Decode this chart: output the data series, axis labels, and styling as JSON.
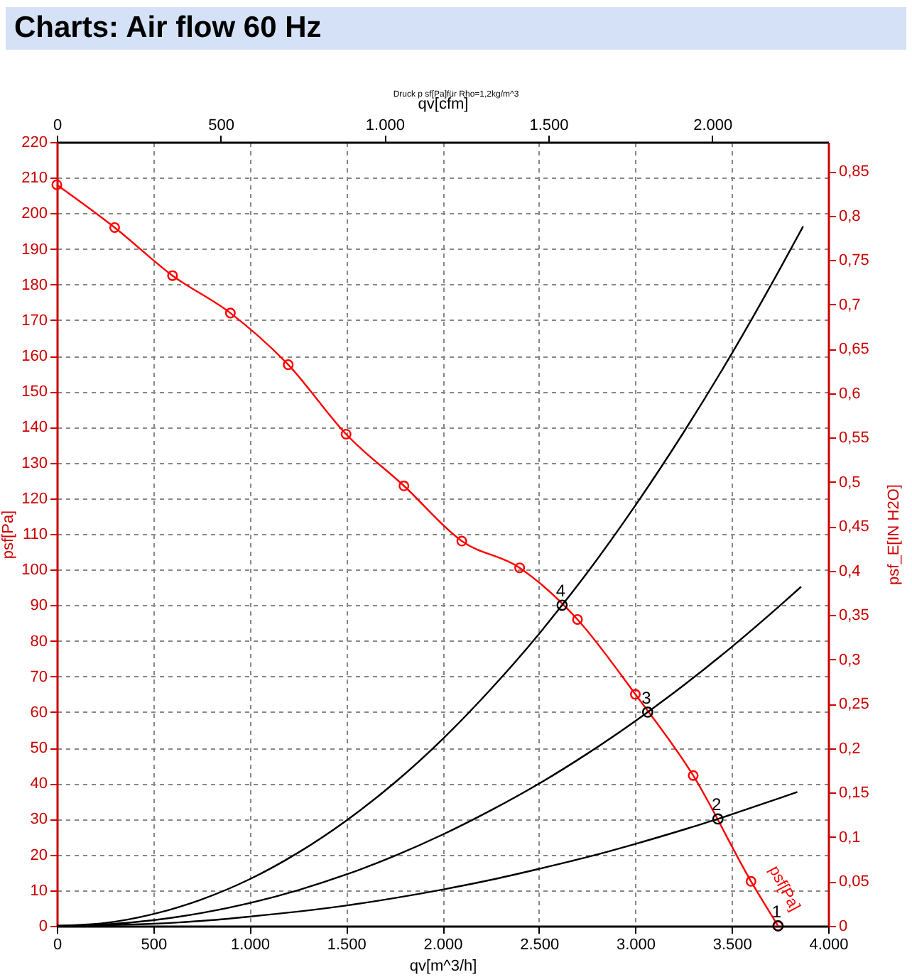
{
  "chart_data": {
    "type": "line",
    "title": "Charts: Air flow 60 Hz",
    "subtitle": "Druck p sf[Pa]für Rho=1,2kg/m^3",
    "xlabel": "qv[m^3/h]",
    "ylabel": "psf[Pa]",
    "y2label": "psf_E[IN H2O]",
    "x2label": "qv[cfm]",
    "xlim": [
      0,
      4000
    ],
    "xticks": [
      0,
      500,
      {
        "value": 1000,
        "label": "1.000"
      },
      {
        "value": 1500,
        "label": "1.500"
      },
      {
        "value": 2000,
        "label": "2.000"
      },
      {
        "value": 2500,
        "label": "2.500"
      },
      {
        "value": 3000,
        "label": "3.000"
      },
      {
        "value": 3500,
        "label": "3.500"
      },
      {
        "value": 4000,
        "label": "4.000"
      }
    ],
    "ylim": [
      0,
      220
    ],
    "yticks": [
      0,
      10,
      20,
      30,
      40,
      50,
      60,
      70,
      80,
      90,
      100,
      110,
      120,
      130,
      140,
      150,
      160,
      170,
      180,
      190,
      200,
      210,
      220
    ],
    "x2lim": [
      0,
      2354
    ],
    "x2ticks": [
      0,
      500,
      {
        "value": 1000,
        "label": "1.000"
      },
      {
        "value": 1500,
        "label": "1.500"
      },
      {
        "value": 2000,
        "label": "2.000"
      }
    ],
    "y2lim": [
      0,
      0.883
    ],
    "y2ticks": [
      0,
      {
        "value": 0.05,
        "label": "0,05"
      },
      {
        "value": 0.1,
        "label": "0,1"
      },
      {
        "value": 0.15,
        "label": "0,15"
      },
      {
        "value": 0.2,
        "label": "0,2"
      },
      {
        "value": 0.25,
        "label": "0,25"
      },
      {
        "value": 0.3,
        "label": "0,3"
      },
      {
        "value": 0.35,
        "label": "0,35"
      },
      {
        "value": 0.4,
        "label": "0,4"
      },
      {
        "value": 0.45,
        "label": "0,45"
      },
      {
        "value": 0.5,
        "label": "0,5"
      },
      {
        "value": 0.55,
        "label": "0,55"
      },
      {
        "value": 0.6,
        "label": "0,6"
      },
      {
        "value": 0.65,
        "label": "0,65"
      },
      {
        "value": 0.7,
        "label": "0,7"
      },
      {
        "value": 0.75,
        "label": "0,75"
      },
      {
        "value": 0.8,
        "label": "0,8"
      },
      {
        "value": 0.85,
        "label": "0,85"
      }
    ],
    "grid": true,
    "series": [
      {
        "name": "psf[Pa]",
        "type": "line",
        "color": "#ff0000",
        "marker": "circle",
        "x": [
          0,
          300,
          600,
          900,
          1200,
          1500,
          1800,
          2100,
          2400,
          2700,
          3000,
          3300,
          3600,
          3740
        ],
        "values": [
          208,
          196,
          182.5,
          172,
          157.5,
          138,
          123.5,
          108,
          100.5,
          86,
          65,
          42.2,
          12.5,
          0
        ]
      },
      {
        "type": "line",
        "color": "#000000",
        "marker": "none",
        "x": [
          0,
          250,
          500,
          750,
          1000,
          1250,
          1500,
          1750,
          2000,
          2250,
          2500,
          2620,
          2750,
          3000,
          3250,
          3500,
          3750,
          3870
        ],
        "values": [
          0,
          0.8,
          3.3,
          7.4,
          13.1,
          20.5,
          29.5,
          40.1,
          52.4,
          66.4,
          81.9,
          90,
          99.1,
          118,
          138.5,
          160.6,
          184.4,
          196.3
        ]
      },
      {
        "type": "line",
        "color": "#000000",
        "marker": "none",
        "x": [
          0,
          250,
          500,
          750,
          1000,
          1250,
          1500,
          1750,
          2000,
          2250,
          2500,
          2750,
          3000,
          3064,
          3250,
          3500,
          3750,
          3860
        ],
        "values": [
          0,
          0.4,
          1.6,
          3.6,
          6.4,
          10,
          14.4,
          19.6,
          25.6,
          32.4,
          39.9,
          48.3,
          57.5,
          60,
          67.5,
          78.3,
          89.9,
          95.2
        ]
      },
      {
        "type": "line",
        "color": "#000000",
        "marker": "none",
        "x": [
          0,
          250,
          500,
          750,
          1000,
          1250,
          1500,
          1750,
          2000,
          2250,
          2500,
          2750,
          3000,
          3250,
          3428,
          3500,
          3750,
          3840
        ],
        "values": [
          0,
          0.2,
          0.6,
          1.4,
          2.6,
          4,
          5.7,
          7.8,
          10.2,
          12.9,
          16,
          19.3,
          23,
          27,
          30,
          31.3,
          35.9,
          37.6
        ]
      },
      {
        "type": "scatter",
        "color": "#000000",
        "marker": "circle",
        "x": [
          3740,
          3428,
          3064,
          2620
        ],
        "values": [
          0,
          30,
          60,
          90
        ]
      }
    ],
    "annotations": [
      {
        "text": "1",
        "x": 3740,
        "y": 0
      },
      {
        "text": "2",
        "x": 3428,
        "y": 30
      },
      {
        "text": "3",
        "x": 3064,
        "y": 60
      },
      {
        "text": "4",
        "x": 2620,
        "y": 90
      }
    ]
  }
}
